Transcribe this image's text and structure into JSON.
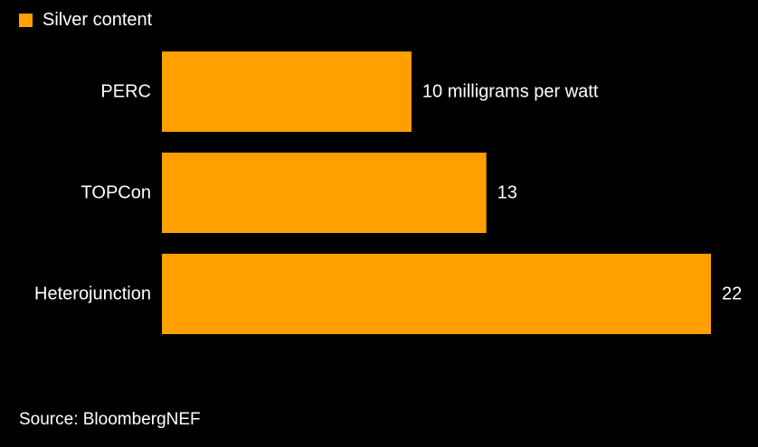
{
  "legend": {
    "label": "Silver content",
    "color": "#FF9F00"
  },
  "source": "Source: BloombergNEF",
  "chart_data": {
    "type": "bar",
    "orientation": "horizontal",
    "categories": [
      "PERC",
      "TOPCon",
      "Heterojunction"
    ],
    "series": [
      {
        "name": "Silver content",
        "values": [
          10,
          13,
          22
        ],
        "color": "#FF9F00"
      }
    ],
    "data_labels": [
      "10 milligrams per watt",
      "13",
      "22"
    ],
    "unit": "milligrams per watt",
    "xlim": [
      0,
      22
    ],
    "grid": false,
    "legend_position": "top-left",
    "background": "#000000"
  }
}
